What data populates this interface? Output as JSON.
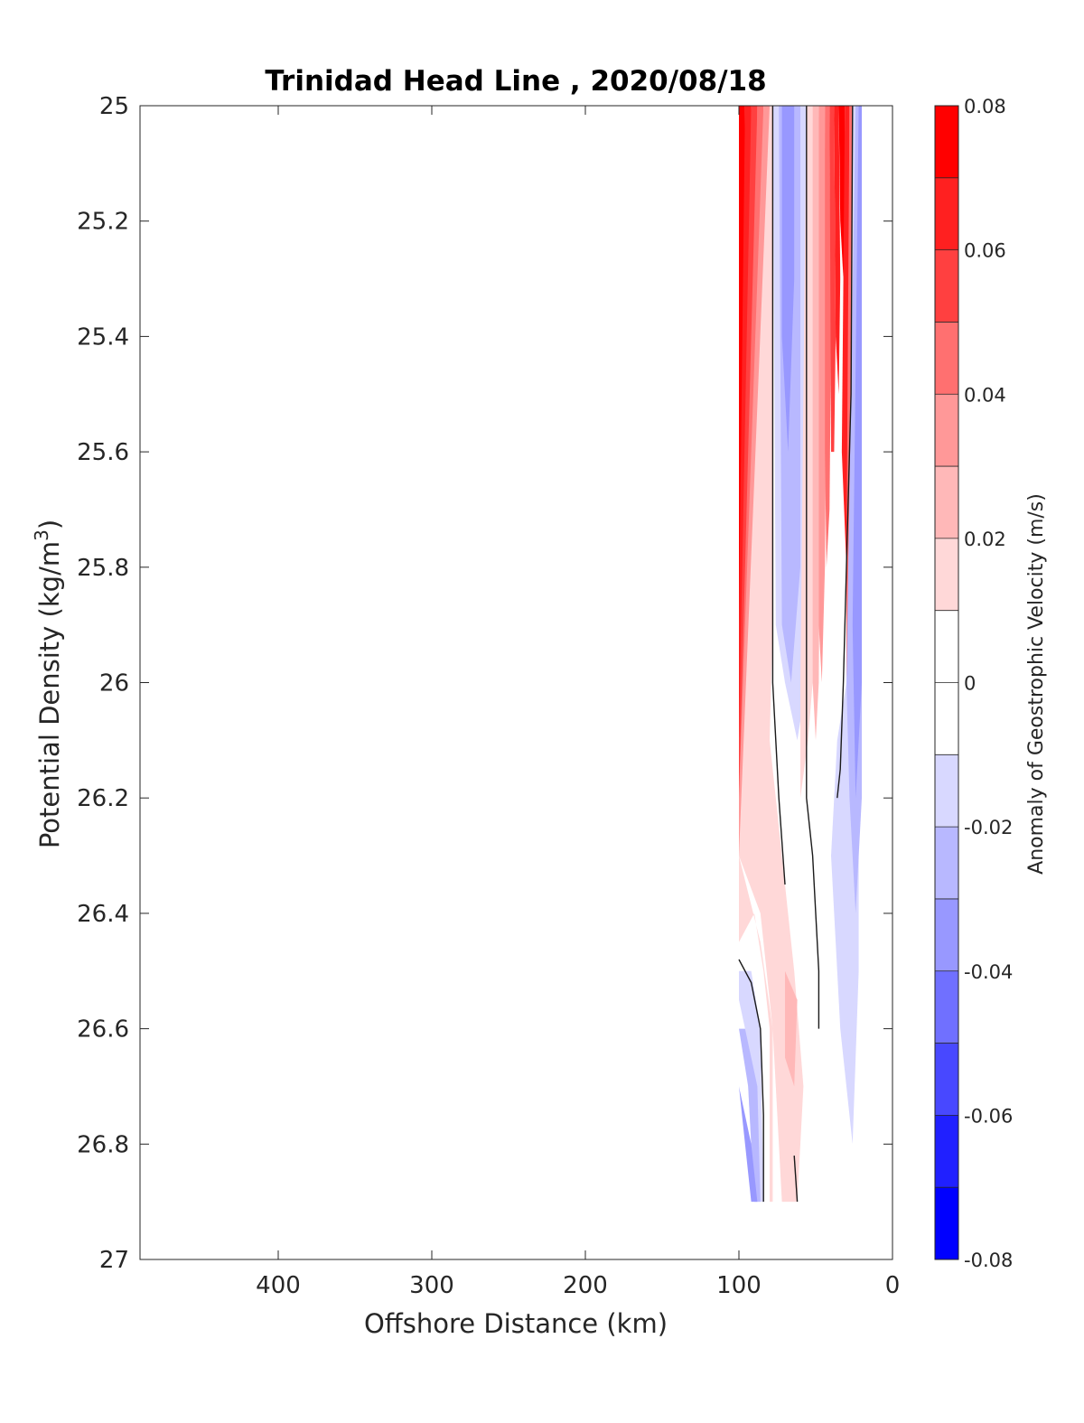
{
  "chart_data": {
    "type": "heatmap",
    "subtype": "filled-contour",
    "title": "Trinidad Head Line , 2020/08/18",
    "xlabel": "Offshore Distance (km)",
    "ylabel": "Potential Density (kg/m",
    "ylabel_sup": "3",
    "ylabel_close": ")",
    "xlim": [
      490,
      0
    ],
    "x_reversed": true,
    "ylim": [
      27,
      25
    ],
    "y_reversed": true,
    "xticks": [
      400,
      300,
      200,
      100,
      0
    ],
    "yticks": [
      25,
      25.2,
      25.4,
      25.6,
      25.8,
      26,
      26.2,
      26.4,
      26.6,
      26.8,
      27
    ],
    "ytick_labels": [
      "25",
      "25.2",
      "25.4",
      "25.6",
      "25.8",
      "26",
      "26.2",
      "26.4",
      "26.6",
      "26.8",
      "27"
    ],
    "grid": false,
    "colorbar": {
      "label": "Anomaly of Geostrophic Velocity (m/s)",
      "limits": [
        -0.08,
        0.08
      ],
      "ticks": [
        0.08,
        0.06,
        0.04,
        0.02,
        0,
        -0.02,
        -0.04,
        -0.06,
        -0.08
      ],
      "tick_labels": [
        "0.08",
        "0.06",
        "0.04",
        "0.02",
        "0",
        "-0.02",
        "-0.04",
        "-0.06",
        "-0.08"
      ],
      "levels": [
        0.08,
        0.07,
        0.06,
        0.05,
        0.04,
        0.03,
        0.02,
        0.01,
        0,
        -0.01,
        -0.02,
        -0.03,
        -0.04,
        -0.05,
        -0.06,
        -0.07,
        -0.08
      ],
      "colors_top_to_bottom": [
        "#ff0000",
        "#ff2020",
        "#ff4040",
        "#ff7070",
        "#ff9898",
        "#ffb8b8",
        "#ffd8d8",
        "#ffffff",
        "#ffffff",
        "#d8d8ff",
        "#b8b8ff",
        "#9898ff",
        "#7070ff",
        "#4848ff",
        "#2020ff",
        "#0000ff"
      ]
    },
    "regions": [
      {
        "value": 0.075,
        "points": [
          [
            100,
            25
          ],
          [
            96,
            25
          ],
          [
            96,
            25.4
          ],
          [
            97,
            25.8
          ],
          [
            98,
            26.0
          ],
          [
            100,
            26.1
          ]
        ]
      },
      {
        "value": 0.065,
        "points": [
          [
            96,
            25
          ],
          [
            92,
            25
          ],
          [
            92,
            25.5
          ],
          [
            94,
            25.8
          ],
          [
            96,
            26.0
          ],
          [
            100,
            26.1
          ],
          [
            100,
            25.9
          ]
        ]
      },
      {
        "value": 0.055,
        "points": [
          [
            92,
            25
          ],
          [
            88,
            25
          ],
          [
            88,
            25.6
          ],
          [
            90,
            25.9
          ],
          [
            93,
            26.1
          ],
          [
            100,
            26.2
          ],
          [
            100,
            26.1
          ]
        ]
      },
      {
        "value": 0.045,
        "points": [
          [
            88,
            25
          ],
          [
            84,
            25
          ],
          [
            84,
            25.8
          ],
          [
            87,
            26.0
          ],
          [
            89,
            26.2
          ],
          [
            100,
            26.2
          ]
        ]
      },
      {
        "value": 0.035,
        "points": [
          [
            84,
            25
          ],
          [
            80,
            25
          ],
          [
            80,
            25.8
          ],
          [
            83,
            26.1
          ],
          [
            86,
            26.3
          ],
          [
            100,
            26.3
          ],
          [
            100,
            26.2
          ]
        ]
      },
      {
        "value": 0.015,
        "points": [
          [
            80,
            25
          ],
          [
            78,
            25
          ],
          [
            78,
            25.9
          ],
          [
            80,
            26.1
          ],
          [
            72,
            26.3
          ],
          [
            64,
            26.5
          ],
          [
            58,
            26.7
          ],
          [
            62,
            26.9
          ],
          [
            72,
            26.9
          ],
          [
            78,
            26.6
          ],
          [
            86,
            26.4
          ],
          [
            100,
            26.3
          ],
          [
            100,
            26.45
          ],
          [
            90,
            26.4
          ],
          [
            84,
            26.5
          ],
          [
            80,
            26.6
          ],
          [
            80,
            26.9
          ],
          [
            78,
            26.9
          ],
          [
            78,
            26.6
          ],
          [
            86,
            26.45
          ],
          [
            100,
            26.3
          ]
        ]
      },
      {
        "value": 0.025,
        "points": [
          [
            70,
            26.5
          ],
          [
            62,
            26.55
          ],
          [
            64,
            26.7
          ],
          [
            70,
            26.65
          ]
        ]
      },
      {
        "value": -0.015,
        "points": [
          [
            78,
            25
          ],
          [
            56,
            25
          ],
          [
            56,
            26.0
          ],
          [
            62,
            26.1
          ],
          [
            70,
            26.0
          ],
          [
            76,
            25.9
          ]
        ]
      },
      {
        "value": -0.025,
        "points": [
          [
            74,
            25
          ],
          [
            60,
            25
          ],
          [
            60,
            25.8
          ],
          [
            66,
            26.0
          ],
          [
            72,
            25.9
          ]
        ]
      },
      {
        "value": -0.035,
        "points": [
          [
            72,
            25
          ],
          [
            64,
            25
          ],
          [
            64,
            25.3
          ],
          [
            68,
            25.6
          ],
          [
            72,
            25.4
          ]
        ]
      },
      {
        "value": 0.015,
        "points": [
          [
            56,
            25
          ],
          [
            52,
            25
          ],
          [
            50,
            25.6
          ],
          [
            52,
            26.0
          ],
          [
            55,
            26.1
          ],
          [
            60,
            26.2
          ],
          [
            60,
            26.0
          ]
        ]
      },
      {
        "value": 0.025,
        "points": [
          [
            52,
            25
          ],
          [
            48,
            25
          ],
          [
            47,
            25.6
          ],
          [
            48,
            26.0
          ],
          [
            50,
            26.1
          ],
          [
            52,
            26.0
          ]
        ]
      },
      {
        "value": 0.035,
        "points": [
          [
            48,
            25
          ],
          [
            44,
            25
          ],
          [
            43,
            25.5
          ],
          [
            44,
            25.8
          ],
          [
            46,
            26.0
          ],
          [
            48,
            25.9
          ]
        ]
      },
      {
        "value": 0.045,
        "points": [
          [
            44,
            25
          ],
          [
            41,
            25
          ],
          [
            40,
            25.4
          ],
          [
            41,
            25.7
          ],
          [
            43,
            25.8
          ],
          [
            44,
            25.6
          ]
        ]
      },
      {
        "value": 0.055,
        "points": [
          [
            41,
            25
          ],
          [
            38,
            25
          ],
          [
            37,
            25.4
          ],
          [
            38,
            25.6
          ],
          [
            40,
            25.6
          ]
        ]
      },
      {
        "value": 0.065,
        "points": [
          [
            38,
            25
          ],
          [
            35,
            25
          ],
          [
            34,
            25.3
          ],
          [
            35,
            25.5
          ],
          [
            37,
            25.4
          ]
        ]
      },
      {
        "value": 0.075,
        "points": [
          [
            35,
            25
          ],
          [
            31,
            25
          ],
          [
            31,
            25.2
          ],
          [
            32,
            25.3
          ],
          [
            34,
            25.2
          ]
        ]
      },
      {
        "value": 0.065,
        "points": [
          [
            31,
            25
          ],
          [
            28,
            25
          ],
          [
            28,
            25.6
          ],
          [
            30,
            25.8
          ],
          [
            33,
            25.6
          ]
        ]
      },
      {
        "value": 0.045,
        "points": [
          [
            28,
            25
          ],
          [
            26,
            25
          ],
          [
            26,
            25.8
          ],
          [
            30,
            26.0
          ],
          [
            30,
            25.8
          ]
        ]
      },
      {
        "value": -0.015,
        "points": [
          [
            26,
            25
          ],
          [
            22,
            25
          ],
          [
            22,
            26.5
          ],
          [
            26,
            26.8
          ],
          [
            34,
            26.6
          ],
          [
            40,
            26.3
          ],
          [
            36,
            26.1
          ],
          [
            30,
            26.0
          ],
          [
            28,
            25.9
          ]
        ]
      },
      {
        "value": -0.025,
        "points": [
          [
            24,
            25
          ],
          [
            20,
            25
          ],
          [
            20,
            26.2
          ],
          [
            24,
            26.4
          ],
          [
            28,
            26.2
          ],
          [
            30,
            26.0
          ]
        ]
      },
      {
        "value": -0.035,
        "points": [
          [
            22,
            25
          ],
          [
            20,
            25
          ],
          [
            20,
            26.0
          ],
          [
            24,
            26.2
          ],
          [
            26,
            25.9
          ]
        ]
      },
      {
        "value": -0.015,
        "points": [
          [
            100,
            26.55
          ],
          [
            96,
            26.6
          ],
          [
            92,
            26.8
          ],
          [
            90,
            26.9
          ],
          [
            84,
            26.9
          ],
          [
            86,
            26.6
          ],
          [
            92,
            26.5
          ],
          [
            100,
            26.5
          ]
        ]
      },
      {
        "value": -0.025,
        "points": [
          [
            100,
            26.6
          ],
          [
            94,
            26.7
          ],
          [
            90,
            26.9
          ],
          [
            86,
            26.9
          ],
          [
            88,
            26.7
          ],
          [
            96,
            26.6
          ]
        ]
      },
      {
        "value": -0.035,
        "points": [
          [
            100,
            26.7
          ],
          [
            96,
            26.8
          ],
          [
            92,
            26.9
          ],
          [
            88,
            26.9
          ],
          [
            92,
            26.8
          ]
        ]
      }
    ],
    "contour_lines": [
      {
        "value": 0,
        "points": [
          [
            78,
            25
          ],
          [
            78,
            25.6
          ],
          [
            78,
            26.0
          ],
          [
            74,
            26.2
          ],
          [
            70,
            26.35
          ]
        ]
      },
      {
        "value": 0,
        "points": [
          [
            56,
            25
          ],
          [
            56,
            25.6
          ],
          [
            56,
            26.2
          ],
          [
            52,
            26.3
          ],
          [
            48,
            26.5
          ],
          [
            48,
            26.6
          ]
        ]
      },
      {
        "value": 0,
        "points": [
          [
            26,
            25
          ],
          [
            27,
            25.5
          ],
          [
            30,
            25.8
          ],
          [
            32,
            26.0
          ],
          [
            34,
            26.15
          ],
          [
            36,
            26.2
          ]
        ]
      },
      {
        "value": 0,
        "points": [
          [
            100,
            26.48
          ],
          [
            92,
            26.52
          ],
          [
            86,
            26.6
          ],
          [
            84,
            26.75
          ],
          [
            84,
            26.9
          ]
        ]
      },
      {
        "value": 0,
        "points": [
          [
            64,
            26.82
          ],
          [
            62,
            26.9
          ]
        ]
      }
    ]
  }
}
